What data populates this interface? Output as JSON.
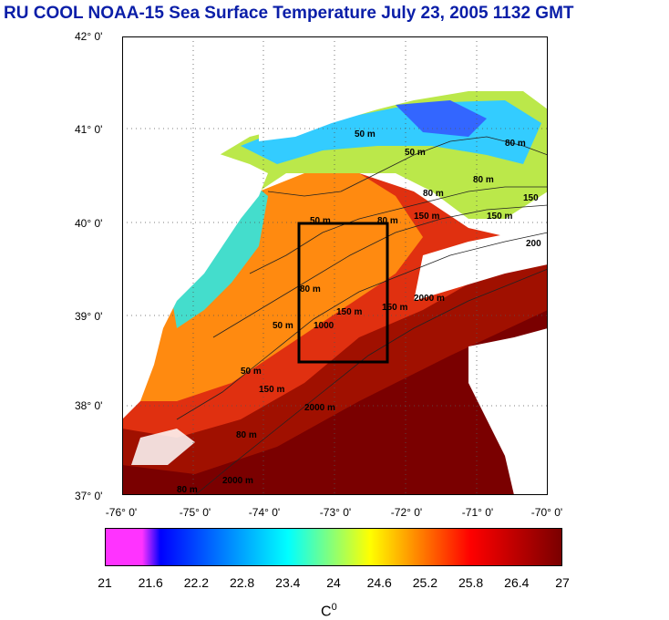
{
  "title": "RU COOL  NOAA-15 Sea Surface Temperature July 23, 2005 1132 GMT",
  "lat_labels": [
    "42° 0'",
    "41° 0'",
    "40° 0'",
    "39° 0'",
    "38° 0'",
    "37° 0'"
  ],
  "lon_labels": [
    "-76° 0'",
    "-75° 0'",
    "-74° 0'",
    "-73° 0'",
    "-72° 0'",
    "-71° 0'",
    "-70° 0'"
  ],
  "contour_labels": [
    "50 m",
    "80 m",
    "80 m",
    "150 m",
    "50 m",
    "80 m",
    "150 m",
    "2000 m",
    "80 m",
    "150 m",
    "1000",
    "50 m",
    "80 m",
    "150 m",
    "50 m",
    "150 m",
    "2000 m",
    "80 m",
    "2000 m",
    "200",
    "50 m",
    "80 m",
    "150"
  ],
  "colorbar": {
    "ticks": [
      "21",
      "21.6",
      "22.2",
      "22.8",
      "23.4",
      "24",
      "24.6",
      "25.2",
      "25.8",
      "26.4",
      "27"
    ],
    "unit": "C",
    "unit_sup": "0",
    "colors": [
      "#ff33ff",
      "#0000ff",
      "#00ffff",
      "#ffff00",
      "#ff0000",
      "#7a0000"
    ]
  },
  "map_colors": {
    "land": "#ffffff",
    "cold": "#00ccff",
    "cool": "#88ee66",
    "warm": "#ff9a1a",
    "hot": "#e02000",
    "hottest": "#8a0000",
    "box": "#000000"
  }
}
